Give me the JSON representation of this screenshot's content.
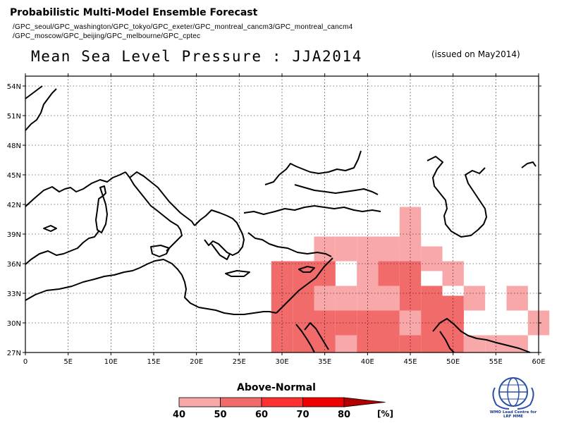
{
  "header": {
    "title": "Probabilistic Multi-Model Ensemble Forecast",
    "models_line1": "/GPC_seoul/GPC_washington/GPC_tokyo/GPC_exeter/GPC_montreal_cancm3/GPC_montreal_cancm4",
    "models_line2": "/GPC_moscow/GPC_beijing/GPC_melbourne/GPC_cptec",
    "subtitle": "Mean Sea Level Pressure : JJA2014",
    "issued": "(issued on May2014)"
  },
  "map": {
    "lon_range": [
      0,
      60
    ],
    "lat_range": [
      27,
      55
    ],
    "lon_ticks": [
      "0",
      "5E",
      "10E",
      "15E",
      "20E",
      "25E",
      "30E",
      "35E",
      "40E",
      "45E",
      "50E",
      "55E",
      "60E"
    ],
    "lat_ticks": [
      "27N",
      "30N",
      "33N",
      "36N",
      "39N",
      "42N",
      "45N",
      "48N",
      "51N",
      "54N"
    ],
    "grid": true,
    "grid_color": "#000000",
    "cell_size_deg": 2.5,
    "colors": {
      "40-50": "#f8a8a8",
      "50-60": "#f26b6b",
      "60-70": "#ff3030",
      "70-80": "#ee0000",
      "80+": "#b00000"
    },
    "probability_cells": [
      {
        "lon": 45,
        "lat": 39,
        "class": "40-50"
      },
      {
        "lon": 45,
        "lat": 40.5,
        "class": "40-50"
      },
      {
        "lon": 42.5,
        "lat": 37.5,
        "class": "40-50"
      },
      {
        "lon": 37.5,
        "lat": 37.5,
        "class": "40-50"
      },
      {
        "lon": 40,
        "lat": 37.5,
        "class": "40-50"
      },
      {
        "lon": 35,
        "lat": 37.5,
        "class": "40-50"
      },
      {
        "lon": 45,
        "lat": 37.5,
        "class": "40-50"
      },
      {
        "lon": 47.5,
        "lat": 36.5,
        "class": "40-50"
      },
      {
        "lon": 30,
        "lat": 35,
        "class": "50-60"
      },
      {
        "lon": 32.5,
        "lat": 35,
        "class": "50-60"
      },
      {
        "lon": 35,
        "lat": 35,
        "class": "50-60"
      },
      {
        "lon": 40,
        "lat": 35,
        "class": "40-50"
      },
      {
        "lon": 42.5,
        "lat": 35,
        "class": "50-60"
      },
      {
        "lon": 45,
        "lat": 35,
        "class": "50-60"
      },
      {
        "lon": 50,
        "lat": 35,
        "class": "40-50"
      },
      {
        "lon": 30,
        "lat": 32.5,
        "class": "50-60"
      },
      {
        "lon": 32.5,
        "lat": 32.5,
        "class": "50-60"
      },
      {
        "lon": 35,
        "lat": 32.5,
        "class": "40-50"
      },
      {
        "lon": 37.5,
        "lat": 32.5,
        "class": "40-50"
      },
      {
        "lon": 40,
        "lat": 32.5,
        "class": "40-50"
      },
      {
        "lon": 42.5,
        "lat": 32.5,
        "class": "40-50"
      },
      {
        "lon": 45,
        "lat": 32.5,
        "class": "50-60"
      },
      {
        "lon": 47.5,
        "lat": 32.5,
        "class": "50-60"
      },
      {
        "lon": 50,
        "lat": 31.5,
        "class": "50-60"
      },
      {
        "lon": 52.5,
        "lat": 32.5,
        "class": "40-50"
      },
      {
        "lon": 57.5,
        "lat": 32.5,
        "class": "40-50"
      },
      {
        "lon": 30,
        "lat": 30,
        "class": "50-60"
      },
      {
        "lon": 32.5,
        "lat": 30,
        "class": "50-60"
      },
      {
        "lon": 35,
        "lat": 30,
        "class": "50-60"
      },
      {
        "lon": 37.5,
        "lat": 30,
        "class": "50-60"
      },
      {
        "lon": 40,
        "lat": 30,
        "class": "50-60"
      },
      {
        "lon": 42.5,
        "lat": 30,
        "class": "50-60"
      },
      {
        "lon": 45,
        "lat": 30,
        "class": "40-50"
      },
      {
        "lon": 47.5,
        "lat": 30,
        "class": "50-60"
      },
      {
        "lon": 50,
        "lat": 30,
        "class": "50-60"
      },
      {
        "lon": 60,
        "lat": 30,
        "class": "40-50"
      },
      {
        "lon": 30,
        "lat": 27.5,
        "class": "50-60"
      },
      {
        "lon": 32.5,
        "lat": 27.5,
        "class": "50-60"
      },
      {
        "lon": 35,
        "lat": 27.5,
        "class": "50-60"
      },
      {
        "lon": 37.5,
        "lat": 27.5,
        "class": "40-50"
      },
      {
        "lon": 40,
        "lat": 27.5,
        "class": "50-60"
      },
      {
        "lon": 42.5,
        "lat": 27.5,
        "class": "50-60"
      },
      {
        "lon": 45,
        "lat": 27.5,
        "class": "50-60"
      },
      {
        "lon": 47.5,
        "lat": 27.5,
        "class": "50-60"
      },
      {
        "lon": 50,
        "lat": 27.5,
        "class": "50-60"
      },
      {
        "lon": 52.5,
        "lat": 27.5,
        "class": "40-50"
      },
      {
        "lon": 55,
        "lat": 27.5,
        "class": "40-50"
      },
      {
        "lon": 57.5,
        "lat": 27.5,
        "class": "40-50"
      }
    ]
  },
  "legend": {
    "title": "Above-Normal",
    "labels": [
      "40",
      "50",
      "60",
      "70",
      "80"
    ],
    "unit": "[%]",
    "colors": [
      "#f8a8a8",
      "#f26b6b",
      "#ff3030",
      "#ee0000",
      "#b00000"
    ]
  },
  "logo": {
    "icon": "wmo-globe-icon",
    "caption_line1": "WMO Lead Centre for",
    "caption_line2": "LRF MME"
  }
}
